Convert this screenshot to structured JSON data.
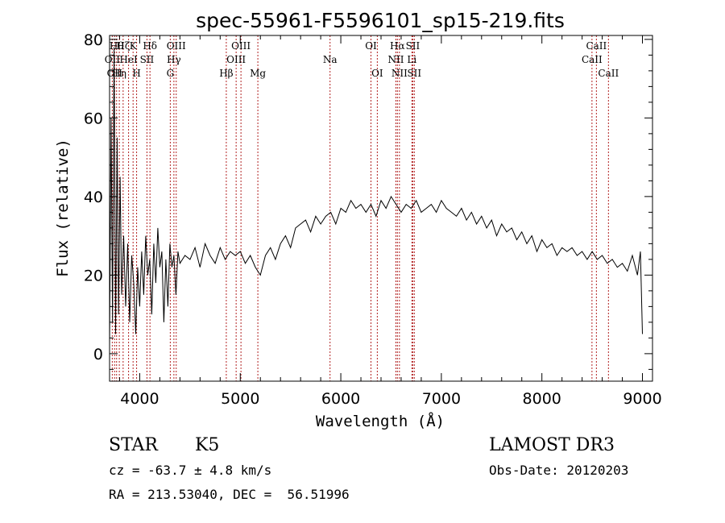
{
  "chart_data": {
    "type": "line",
    "title": "spec-55961-F5596101_sp15-219.fits",
    "xlabel": "Wavelength (Å)",
    "ylabel": "Flux (relative)",
    "xlim": [
      3700,
      9100
    ],
    "ylim": [
      -7,
      81
    ],
    "xticks": [
      4000,
      5000,
      6000,
      7000,
      8000,
      9000
    ],
    "xtick_labels": [
      "4000",
      "5000",
      "6000",
      "7000",
      "8000",
      "9000"
    ],
    "xminor": 200,
    "yticks": [
      0,
      20,
      40,
      60,
      80
    ],
    "ytick_labels": [
      "0",
      "20",
      "40",
      "60",
      "80"
    ],
    "yminor": 4,
    "line_color": "#000000",
    "marker_color": "#b22222",
    "series": [
      {
        "name": "spectrum",
        "x": [
          3700,
          3715,
          3730,
          3745,
          3760,
          3775,
          3790,
          3805,
          3820,
          3840,
          3860,
          3880,
          3900,
          3920,
          3940,
          3960,
          3980,
          4000,
          4020,
          4040,
          4060,
          4080,
          4100,
          4120,
          4140,
          4160,
          4180,
          4200,
          4220,
          4240,
          4260,
          4280,
          4300,
          4320,
          4340,
          4360,
          4380,
          4400,
          4450,
          4500,
          4550,
          4600,
          4650,
          4700,
          4750,
          4800,
          4850,
          4900,
          4950,
          5000,
          5050,
          5100,
          5150,
          5200,
          5250,
          5300,
          5350,
          5400,
          5450,
          5500,
          5550,
          5600,
          5650,
          5700,
          5750,
          5800,
          5850,
          5900,
          5950,
          6000,
          6050,
          6100,
          6150,
          6200,
          6250,
          6300,
          6350,
          6400,
          6450,
          6500,
          6550,
          6600,
          6650,
          6700,
          6750,
          6800,
          6850,
          6900,
          6950,
          7000,
          7050,
          7100,
          7150,
          7200,
          7250,
          7300,
          7350,
          7400,
          7450,
          7500,
          7550,
          7600,
          7650,
          7700,
          7750,
          7800,
          7850,
          7900,
          7950,
          8000,
          8050,
          8100,
          8150,
          8200,
          8250,
          8300,
          8350,
          8400,
          8450,
          8500,
          8550,
          8600,
          8650,
          8700,
          8750,
          8800,
          8850,
          8900,
          8950,
          8980,
          9000
        ],
        "y": [
          2,
          60,
          8,
          78,
          5,
          55,
          10,
          45,
          15,
          30,
          12,
          28,
          8,
          25,
          18,
          5,
          22,
          12,
          26,
          15,
          30,
          20,
          24,
          10,
          28,
          18,
          32,
          22,
          26,
          8,
          24,
          12,
          28,
          22,
          25,
          15,
          26,
          23,
          25,
          24,
          27,
          22,
          28,
          25,
          23,
          27,
          24,
          26,
          25,
          26,
          23,
          25,
          22,
          20,
          25,
          27,
          24,
          28,
          30,
          27,
          32,
          33,
          34,
          31,
          35,
          33,
          35,
          36,
          33,
          37,
          36,
          39,
          37,
          38,
          36,
          38,
          35,
          39,
          37,
          40,
          38,
          36,
          38,
          37,
          39,
          36,
          37,
          38,
          36,
          39,
          37,
          36,
          35,
          37,
          34,
          36,
          33,
          35,
          32,
          34,
          30,
          33,
          31,
          32,
          29,
          31,
          28,
          30,
          26,
          29,
          27,
          28,
          25,
          27,
          26,
          27,
          25,
          26,
          24,
          26,
          24,
          25,
          23,
          24,
          22,
          23,
          21,
          25,
          20,
          26,
          5
        ]
      }
    ],
    "markers": [
      {
        "x": 3727,
        "label": "OII",
        "row": 2
      },
      {
        "x": 3750,
        "label": "OII",
        "row": 3
      },
      {
        "x": 3770,
        "label": "Hθ",
        "row": 1
      },
      {
        "x": 3797,
        "label": "Hη",
        "row": 3
      },
      {
        "x": 3835,
        "label": "Hζ",
        "row": 1
      },
      {
        "x": 3889,
        "label": "HeI",
        "row": 2
      },
      {
        "x": 3934,
        "label": "K",
        "row": 1
      },
      {
        "x": 3969,
        "label": "H",
        "row": 3
      },
      {
        "x": 4072,
        "label": "SII",
        "row": 2
      },
      {
        "x": 4102,
        "label": "Hδ",
        "row": 1
      },
      {
        "x": 4304,
        "label": "G",
        "row": 3
      },
      {
        "x": 4340,
        "label": "Hγ",
        "row": 2
      },
      {
        "x": 4363,
        "label": "OIII",
        "row": 1
      },
      {
        "x": 4861,
        "label": "Hβ",
        "row": 3
      },
      {
        "x": 4959,
        "label": "OIII",
        "row": 2
      },
      {
        "x": 5007,
        "label": "OIII",
        "row": 1
      },
      {
        "x": 5175,
        "label": "Mg",
        "row": 3
      },
      {
        "x": 5893,
        "label": "Na",
        "row": 2
      },
      {
        "x": 6300,
        "label": "OI",
        "row": 1
      },
      {
        "x": 6363,
        "label": "OI",
        "row": 3
      },
      {
        "x": 6548,
        "label": "NII",
        "row": 2
      },
      {
        "x": 6563,
        "label": "Hα",
        "row": 1
      },
      {
        "x": 6583,
        "label": "NII",
        "row": 3
      },
      {
        "x": 6716,
        "label": "SII",
        "row": 1
      },
      {
        "x": 6707,
        "label": "Li",
        "row": 2
      },
      {
        "x": 6731,
        "label": "SII",
        "row": 3
      },
      {
        "x": 8498,
        "label": "CaII",
        "row": 2
      },
      {
        "x": 8542,
        "label": "CaII",
        "row": 1
      },
      {
        "x": 8662,
        "label": "CaII",
        "row": 3
      }
    ]
  },
  "info": {
    "class": "STAR",
    "subclass": "K5",
    "survey": "LAMOST DR3",
    "cz": "cz = -63.7 ± 4.8 km/s",
    "obs_date": "Obs-Date: 20120203",
    "coords": "RA = 213.53040, DEC =  56.51996"
  }
}
